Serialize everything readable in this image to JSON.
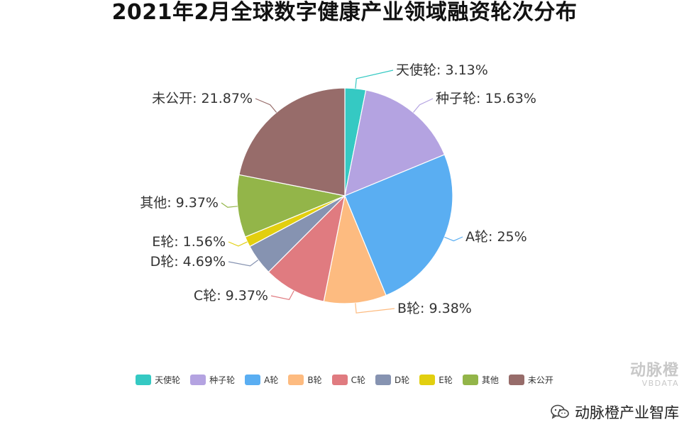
{
  "title": "2021年2月全球数字健康产业领域融资轮次分布",
  "chart_data": {
    "type": "pie",
    "title": "2021年2月全球数字健康产业领域融资轮次分布",
    "legend_position": "bottom",
    "start_angle_deg": 90,
    "direction": "clockwise",
    "slices": [
      {
        "name": "天使轮",
        "value": 3.13,
        "label": "天使轮: 3.13%",
        "color": "#35c9c3"
      },
      {
        "name": "种子轮",
        "value": 15.63,
        "label": "种子轮: 15.63%",
        "color": "#b4a3e1"
      },
      {
        "name": "A轮",
        "value": 25,
        "label": "A轮: 25%",
        "color": "#5aaef2"
      },
      {
        "name": "B轮",
        "value": 9.38,
        "label": "B轮: 9.38%",
        "color": "#fdbb80"
      },
      {
        "name": "C轮",
        "value": 9.37,
        "label": "C轮: 9.37%",
        "color": "#e07b80"
      },
      {
        "name": "D轮",
        "value": 4.69,
        "label": "D轮: 4.69%",
        "color": "#8693b1"
      },
      {
        "name": "E轮",
        "value": 1.56,
        "label": "E轮: 1.56%",
        "color": "#e2cf0f"
      },
      {
        "name": "其他",
        "value": 9.37,
        "label": "其他: 9.37%",
        "color": "#93b549"
      },
      {
        "name": "未公开",
        "value": 21.87,
        "label": "未公开: 21.87%",
        "color": "#976c6a"
      }
    ]
  },
  "watermark": {
    "name": "动脉橙",
    "subtitle": "VBDATA"
  },
  "footer": {
    "icon": "wechat-icon",
    "text": "动脉橙产业智库"
  }
}
